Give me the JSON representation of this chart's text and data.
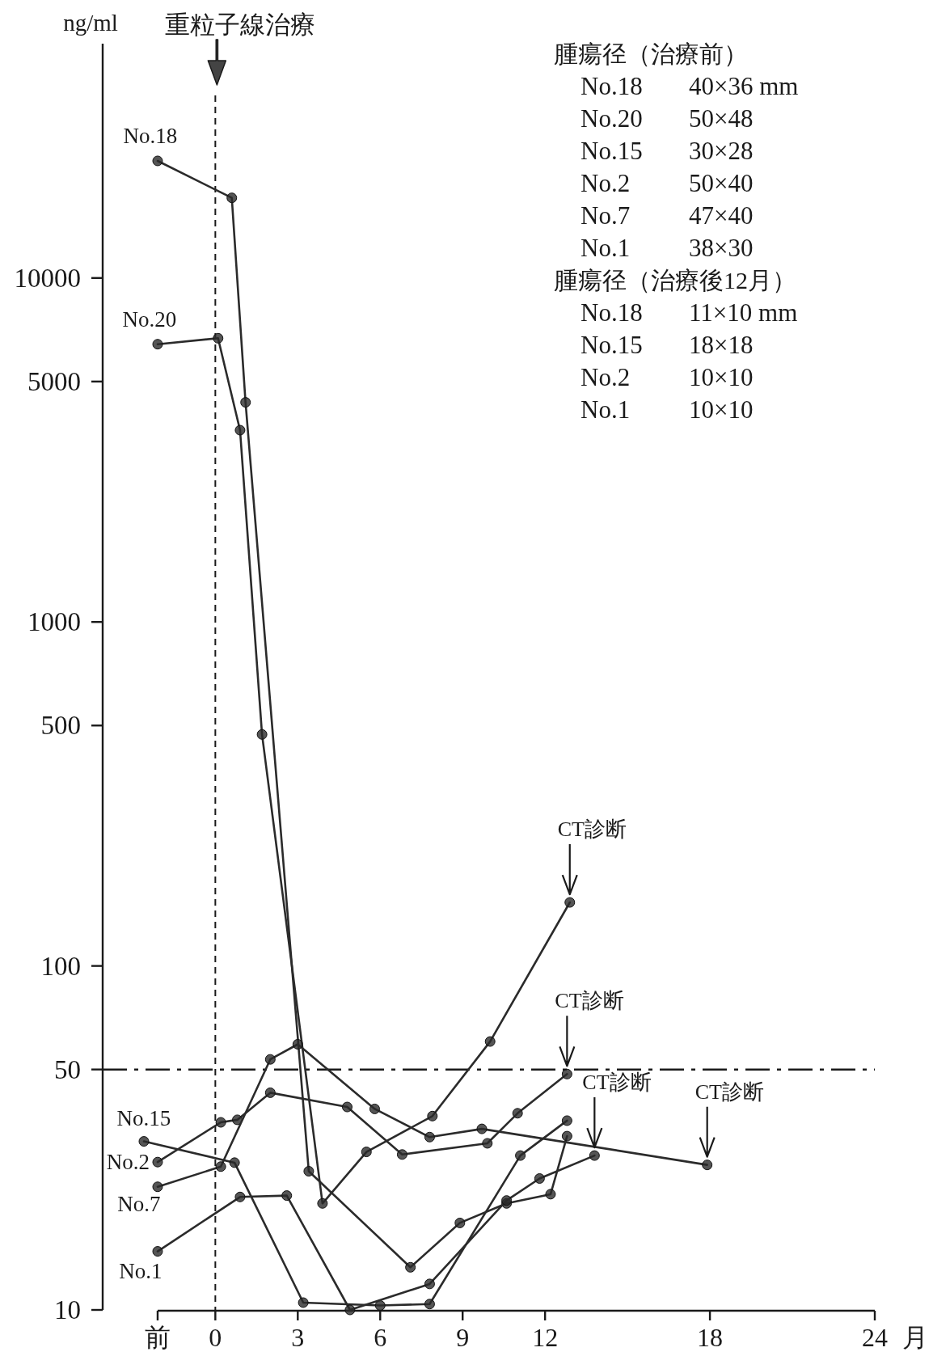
{
  "chart_data": {
    "type": "line",
    "ylabel": "ng/ml",
    "xlabel": "月",
    "log": "y",
    "xlim": [
      -4.1,
      24
    ],
    "ylim": [
      10,
      48000
    ],
    "xticks": [
      {
        "value": -2.1,
        "label": "前"
      },
      0,
      3,
      6,
      9,
      12,
      18,
      24
    ],
    "yticks": [
      10,
      50,
      100,
      500,
      1000,
      5000,
      10000
    ],
    "marker": "circle",
    "series": [
      {
        "name": "No.18",
        "color": "#2b2b2b",
        "x": [
          -2.1,
          0.6,
          1.1,
          3.4,
          7.1,
          8.9,
          10.6,
          12.2,
          12.8
        ],
        "values": [
          21900,
          17100,
          4350,
          25.3,
          13.3,
          17.9,
          20.4,
          21.7,
          32.0
        ]
      },
      {
        "name": "No.20",
        "color": "#2b2b2b",
        "x": [
          -2.1,
          0.1,
          0.9,
          1.7,
          3.9,
          5.5,
          7.9,
          10.0,
          12.9
        ],
        "values": [
          6420,
          6680,
          3610,
          471,
          20.4,
          28.8,
          36.6,
          60.3,
          153
        ]
      },
      {
        "name": "No.15",
        "color": "#2b2b2b",
        "x": [
          -2.6,
          0.7,
          3.2,
          6.0,
          7.8,
          11.1,
          12.8
        ],
        "values": [
          30.9,
          26.8,
          10.5,
          10.3,
          10.4,
          28.1,
          35.5
        ]
      },
      {
        "name": "No.2",
        "color": "#2b2b2b",
        "x": [
          -2.1,
          0.2,
          0.8,
          2.0,
          4.8,
          6.8,
          9.9,
          11.0,
          12.8
        ],
        "values": [
          26.9,
          35.1,
          35.7,
          42.8,
          38.9,
          28.3,
          30.5,
          37.3,
          48.5
        ]
      },
      {
        "name": "No.7",
        "color": "#2b2b2b",
        "x": [
          -2.1,
          0.2,
          2.0,
          3.0,
          5.8,
          7.8,
          9.7,
          17.9
        ],
        "values": [
          22.8,
          26.1,
          53.5,
          59.2,
          38.4,
          31.8,
          33.6,
          26.4
        ]
      },
      {
        "name": "No.1",
        "color": "#2b2b2b",
        "x": [
          -2.1,
          0.9,
          2.6,
          4.9,
          7.8,
          10.6,
          11.8,
          13.8
        ],
        "values": [
          14.8,
          21.3,
          21.5,
          10.0,
          11.9,
          20.8,
          24.1,
          28.1
        ]
      }
    ],
    "ref_lines": [
      {
        "axis": "x",
        "value": 0,
        "label": "重粒子線治療",
        "line_style": "dashed"
      },
      {
        "axis": "y",
        "value": 50,
        "line_style": "dashdot"
      }
    ],
    "annotations": [
      "腫瘍径（治療前）",
      "No.18 40×36 mm",
      "No.20 50×48",
      "No.15 30×28",
      "No.2 50×40",
      "No.7 47×40",
      "No.1 38×30",
      "腫瘍径（治療後12月）",
      "No.18 11×10 mm",
      "No.15 18×18",
      "No.2 10×10",
      "No.1 10×10",
      {
        "text": "CT診断",
        "x": 12.9,
        "y": 153
      },
      {
        "text": "CT診断",
        "x": 12.8,
        "y": 48.5
      },
      {
        "text": "CT診断",
        "x": 13.8,
        "y": 28.1
      },
      {
        "text": "CT診断",
        "x": 17.9,
        "y": 26.4
      }
    ]
  }
}
